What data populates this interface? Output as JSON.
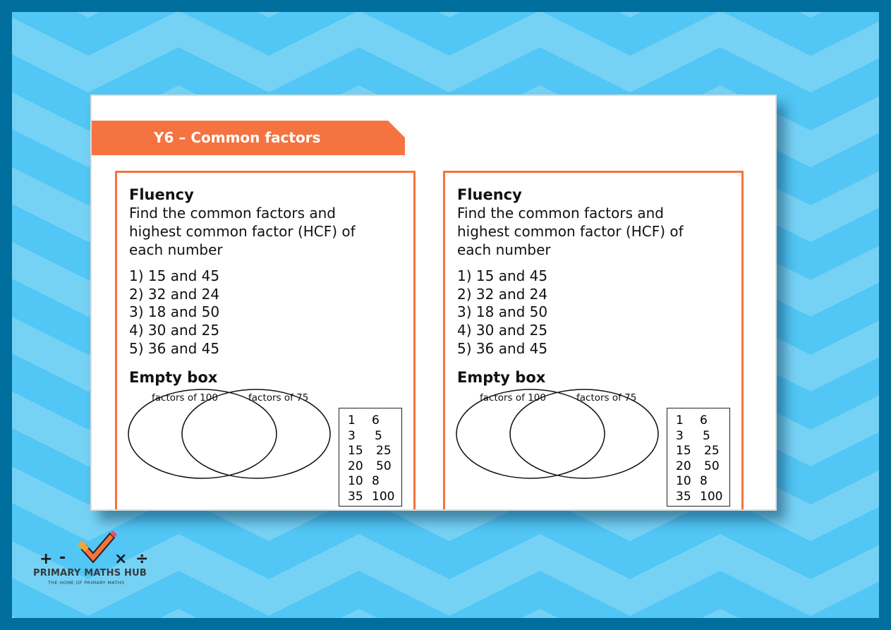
{
  "colors": {
    "frame": "#006f9d",
    "bg_light": "#76d2f5",
    "bg_dark": "#52c6f4",
    "accent": "#f47340"
  },
  "header": {
    "title": "Y6 – Common factors"
  },
  "cards": [
    {
      "heading": "Fluency",
      "instructions": [
        "Find the common factors and",
        "highest common factor (HCF) of",
        "each number"
      ],
      "questions": [
        "1) 15 and 45",
        "2) 32 and 24",
        "3) 18 and 50",
        "4) 30 and 25",
        "5) 36 and 45"
      ],
      "section": "Empty box",
      "venn_left": "factors of 100",
      "venn_right": "factors of 75",
      "numbers": [
        [
          "1",
          "6"
        ],
        [
          "3",
          "5"
        ],
        [
          "15",
          "25"
        ],
        [
          "20",
          "50"
        ],
        [
          "10",
          "8"
        ],
        [
          "35",
          "100"
        ]
      ]
    },
    {
      "heading": "Fluency",
      "instructions": [
        "Find the common factors and",
        "highest common factor (HCF) of",
        "each number"
      ],
      "questions": [
        "1) 15 and 45",
        "2) 32 and 24",
        "3) 18 and 50",
        "4) 30 and 25",
        "5) 36 and 45"
      ],
      "section": "Empty box",
      "venn_left": "factors of 100",
      "venn_right": "factors of 75",
      "numbers": [
        [
          "1",
          "6"
        ],
        [
          "3",
          "5"
        ],
        [
          "15",
          "25"
        ],
        [
          "20",
          "50"
        ],
        [
          "10",
          "8"
        ],
        [
          "35",
          "100"
        ]
      ]
    }
  ],
  "logo": {
    "title": "PRIMARY MATHS HUB",
    "tagline": "THE HOME OF PRIMARY MATHS",
    "symbols": [
      "+",
      "-",
      "×",
      "÷"
    ]
  }
}
